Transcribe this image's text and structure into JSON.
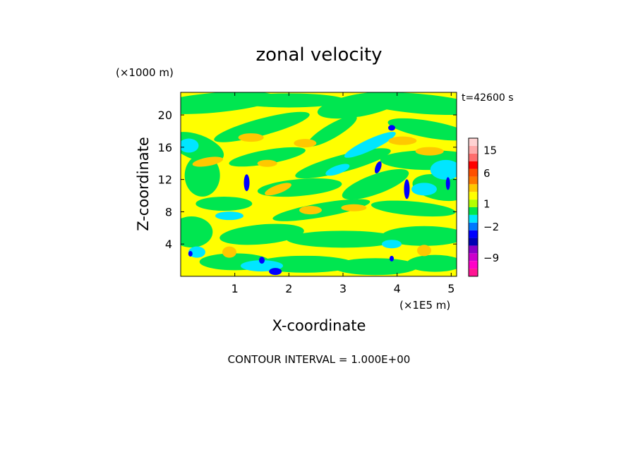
{
  "chart_data": {
    "type": "heatmap",
    "title": "zonal velocity",
    "xlabel": "X-coordinate",
    "ylabel": "Z-coordinate",
    "x_unit": "(×1E5 m)",
    "y_unit": "(×1000 m)",
    "time_label": "t=42600 s",
    "contour_interval_label": "CONTOUR INTERVAL = 1.000E+00",
    "xlim": [
      0,
      5.1
    ],
    "ylim": [
      0,
      22.8
    ],
    "x_ticks": [
      1,
      2,
      3,
      4,
      5
    ],
    "y_ticks": [
      4,
      8,
      12,
      16,
      20
    ],
    "x_tick_labels": [
      "1",
      "2",
      "3",
      "4",
      "5"
    ],
    "y_tick_labels": [
      "4",
      "8",
      "12",
      "16",
      "20"
    ],
    "colorbar": {
      "levels_bottom_to_top": [
        -15,
        -12,
        -9,
        -6,
        -4,
        -3,
        -2,
        -1,
        0,
        1,
        2,
        3,
        4,
        6,
        9,
        12,
        15,
        18
      ],
      "colors_bottom_to_top": [
        "#ff1493",
        "#ff00c8",
        "#cc00cc",
        "#8c00c8",
        "#0000b4",
        "#0000ff",
        "#0078ff",
        "#00e6ff",
        "#00e650",
        "#b4ff00",
        "#ffff00",
        "#ffc800",
        "#ff7800",
        "#ff5000",
        "#ff0000",
        "#ff6e6e",
        "#ffaaaa",
        "#ffd2d2"
      ],
      "tick_labels": [
        {
          "label": "15",
          "value": 15
        },
        {
          "label": "6",
          "value": 6
        },
        {
          "label": "1",
          "value": 1
        },
        {
          "label": "−2",
          "value": -2
        },
        {
          "label": "−9",
          "value": -9
        }
      ]
    },
    "dominant_colors": {
      "background_positive": "#ffff00",
      "near_zero": "#00e650",
      "slightly_negative": "#00e6ff",
      "negative_core": "#0000ff",
      "positive_core": "#ffc800"
    }
  }
}
